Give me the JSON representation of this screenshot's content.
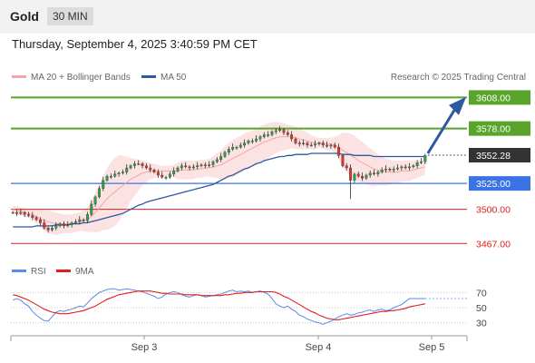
{
  "header": {
    "title": "Gold",
    "timeframe": "30 MIN"
  },
  "subheader": {
    "datetime": "Thursday, September 4, 2025 3:40:59 PM CET"
  },
  "legend": [
    {
      "label": "MA 20 + Bollinger Bands",
      "color": "#f4a6a6"
    },
    {
      "label": "MA 50",
      "color": "#2c5aa0"
    }
  ],
  "credit": "Research © 2025 Trading Central",
  "rsi_legend": [
    {
      "label": "RSI",
      "color": "#5b8be8"
    },
    {
      "label": "9MA",
      "color": "#e0201b"
    }
  ],
  "chart_data": [
    {
      "type": "candlestick",
      "title": "Gold",
      "timeframe": "30 MIN",
      "ylim": [
        3455,
        3618
      ],
      "x_ticks": [
        "Sep 3",
        "Sep 4",
        "Sep 5"
      ],
      "last_price": "3552.28",
      "levels": [
        {
          "label": "3608.00",
          "value": 3608,
          "color": "#59a52c",
          "style": "resistance"
        },
        {
          "label": "3578.00",
          "value": 3578,
          "color": "#59a52c",
          "style": "resistance"
        },
        {
          "label": "3525.00",
          "value": 3525,
          "color": "#3b73e6",
          "style": "pivot"
        },
        {
          "label": "3500.00",
          "value": 3500,
          "color": "#e0201b",
          "style": "support"
        },
        {
          "label": "3467.00",
          "value": 3467,
          "color": "#e0201b",
          "style": "support"
        }
      ],
      "closes": [
        3497,
        3496,
        3497,
        3495,
        3494,
        3492,
        3490,
        3487,
        3482,
        3480,
        3482,
        3484,
        3486,
        3484,
        3485,
        3487,
        3488,
        3490,
        3489,
        3495,
        3505,
        3512,
        3520,
        3528,
        3532,
        3532,
        3534,
        3535,
        3536,
        3540,
        3542,
        3544,
        3544,
        3542,
        3540,
        3538,
        3536,
        3533,
        3531,
        3531,
        3534,
        3537,
        3540,
        3542,
        3541,
        3540,
        3541,
        3542,
        3543,
        3542,
        3543,
        3546,
        3548,
        3551,
        3555,
        3558,
        3560,
        3560,
        3562,
        3564,
        3566,
        3566,
        3568,
        3570,
        3572,
        3572,
        3575,
        3576,
        3577,
        3574,
        3572,
        3568,
        3564,
        3563,
        3564,
        3562,
        3562,
        3563,
        3564,
        3562,
        3561,
        3562,
        3560,
        3552,
        3542,
        3540,
        3528,
        3534,
        3532,
        3530,
        3533,
        3535,
        3534,
        3536,
        3538,
        3539,
        3538,
        3539,
        3540,
        3541,
        3540,
        3541,
        3542,
        3545,
        3546,
        3552
      ],
      "ma20": [
        3500,
        3499,
        3498,
        3497,
        3496,
        3495,
        3493,
        3491,
        3489,
        3488,
        3487,
        3486,
        3486,
        3486,
        3486,
        3486,
        3487,
        3488,
        3489,
        3490,
        3493,
        3497,
        3501,
        3506,
        3510,
        3514,
        3517,
        3520,
        3523,
        3526,
        3529,
        3531,
        3533,
        3535,
        3536,
        3537,
        3537,
        3537,
        3537,
        3537,
        3537,
        3537,
        3537,
        3538,
        3538,
        3538,
        3538,
        3539,
        3539,
        3540,
        3540,
        3541,
        3542,
        3543,
        3545,
        3547,
        3549,
        3551,
        3553,
        3555,
        3557,
        3559,
        3561,
        3563,
        3565,
        3566,
        3568,
        3569,
        3570,
        3570,
        3570,
        3570,
        3569,
        3568,
        3567,
        3566,
        3565,
        3564,
        3564,
        3564,
        3563,
        3563,
        3562,
        3560,
        3557,
        3555,
        3552,
        3550,
        3547,
        3545,
        3543,
        3541,
        3539,
        3538,
        3537,
        3536,
        3536,
        3536,
        3536,
        3537,
        3537,
        3537,
        3538,
        3539,
        3540,
        3541
      ],
      "bb_upper": [
        3504,
        3503,
        3502,
        3501,
        3500,
        3500,
        3500,
        3500,
        3499,
        3499,
        3498,
        3497,
        3496,
        3495,
        3495,
        3495,
        3496,
        3497,
        3499,
        3502,
        3508,
        3516,
        3524,
        3532,
        3540,
        3546,
        3550,
        3552,
        3552,
        3551,
        3550,
        3549,
        3548,
        3547,
        3546,
        3545,
        3544,
        3543,
        3542,
        3542,
        3542,
        3543,
        3545,
        3547,
        3547,
        3547,
        3547,
        3547,
        3548,
        3548,
        3549,
        3551,
        3554,
        3557,
        3561,
        3564,
        3567,
        3569,
        3571,
        3573,
        3575,
        3576,
        3578,
        3580,
        3582,
        3583,
        3584,
        3584,
        3584,
        3583,
        3582,
        3581,
        3580,
        3578,
        3576,
        3574,
        3572,
        3570,
        3569,
        3569,
        3569,
        3569,
        3570,
        3572,
        3574,
        3574,
        3573,
        3571,
        3568,
        3565,
        3562,
        3559,
        3556,
        3553,
        3551,
        3549,
        3548,
        3547,
        3547,
        3547,
        3547,
        3547,
        3547,
        3548,
        3548,
        3549
      ],
      "bb_lower": [
        3496,
        3495,
        3494,
        3493,
        3492,
        3490,
        3486,
        3482,
        3479,
        3477,
        3476,
        3475,
        3476,
        3477,
        3477,
        3477,
        3478,
        3479,
        3479,
        3478,
        3478,
        3478,
        3478,
        3480,
        3480,
        3482,
        3484,
        3488,
        3494,
        3501,
        3508,
        3513,
        3518,
        3523,
        3526,
        3529,
        3530,
        3531,
        3532,
        3532,
        3532,
        3531,
        3529,
        3529,
        3529,
        3529,
        3529,
        3531,
        3530,
        3532,
        3531,
        3531,
        3530,
        3529,
        3529,
        3530,
        3531,
        3533,
        3535,
        3537,
        3539,
        3542,
        3544,
        3546,
        3548,
        3549,
        3552,
        3554,
        3556,
        3557,
        3558,
        3559,
        3558,
        3558,
        3558,
        3558,
        3558,
        3558,
        3559,
        3559,
        3557,
        3557,
        3554,
        3548,
        3540,
        3536,
        3531,
        3529,
        3526,
        3525,
        3524,
        3523,
        3522,
        3523,
        3523,
        3523,
        3524,
        3525,
        3525,
        3527,
        3527,
        3527,
        3529,
        3530,
        3532,
        3533
      ],
      "ma50": [
        3483,
        3483,
        3483,
        3483,
        3483,
        3483,
        3484,
        3484,
        3484,
        3484,
        3484,
        3485,
        3485,
        3485,
        3485,
        3486,
        3486,
        3486,
        3487,
        3487,
        3488,
        3489,
        3490,
        3491,
        3492,
        3493,
        3494,
        3495,
        3496,
        3498,
        3500,
        3502,
        3504,
        3505,
        3507,
        3508,
        3509,
        3510,
        3511,
        3512,
        3513,
        3514,
        3515,
        3516,
        3517,
        3518,
        3519,
        3520,
        3521,
        3522,
        3523,
        3524,
        3526,
        3528,
        3530,
        3532,
        3533,
        3535,
        3537,
        3539,
        3540,
        3542,
        3544,
        3545,
        3547,
        3548,
        3549,
        3550,
        3551,
        3551,
        3552,
        3552,
        3553,
        3553,
        3553,
        3553,
        3554,
        3554,
        3554,
        3554,
        3554,
        3554,
        3554,
        3554,
        3553,
        3553,
        3553,
        3552,
        3552,
        3552,
        3552,
        3552,
        3551,
        3551,
        3551,
        3551,
        3551,
        3551,
        3551,
        3551,
        3551,
        3551,
        3551,
        3551,
        3551,
        3551
      ]
    },
    {
      "type": "line",
      "title": "RSI",
      "ylim": [
        20,
        80
      ],
      "y_ticks": [
        "70",
        "50",
        "30"
      ],
      "series": [
        {
          "name": "RSI",
          "values": [
            60,
            62,
            60,
            55,
            52,
            45,
            40,
            36,
            33,
            32,
            38,
            44,
            46,
            45,
            47,
            48,
            50,
            52,
            51,
            56,
            62,
            66,
            70,
            72,
            74,
            75,
            75,
            73,
            74,
            75,
            74,
            73,
            72,
            71,
            69,
            67,
            65,
            62,
            64,
            68,
            70,
            71,
            70,
            67,
            65,
            64,
            66,
            67,
            66,
            64,
            65,
            66,
            67,
            68,
            70,
            72,
            73,
            71,
            72,
            71,
            72,
            70,
            71,
            72,
            70,
            68,
            62,
            55,
            52,
            50,
            52,
            48,
            45,
            40,
            38,
            35,
            33,
            31,
            30,
            28,
            30,
            32,
            35,
            38,
            40,
            42,
            40,
            41,
            43,
            44,
            46,
            47,
            45,
            47,
            48,
            46,
            47,
            50,
            52,
            54,
            58,
            62,
            62,
            62,
            62,
            62
          ]
        },
        {
          "name": "9MA",
          "values": [
            67,
            66,
            64,
            62,
            60,
            57,
            54,
            51,
            48,
            46,
            44,
            43,
            42,
            42,
            42,
            43,
            44,
            45,
            46,
            48,
            50,
            52,
            55,
            58,
            61,
            63,
            65,
            67,
            68,
            69,
            70,
            71,
            72,
            72,
            72,
            72,
            71,
            70,
            69,
            69,
            68,
            68,
            68,
            68,
            67,
            67,
            67,
            67,
            66,
            66,
            66,
            66,
            66,
            66,
            67,
            67,
            68,
            69,
            69,
            70,
            70,
            70,
            71,
            71,
            71,
            71,
            71,
            70,
            68,
            65,
            63,
            60,
            57,
            54,
            51,
            48,
            45,
            43,
            40,
            38,
            36,
            35,
            34,
            34,
            35,
            36,
            37,
            38,
            39,
            40,
            41,
            42,
            43,
            44,
            45,
            45,
            46,
            46,
            47,
            48,
            49,
            51,
            52,
            53,
            54,
            55
          ]
        }
      ]
    }
  ]
}
